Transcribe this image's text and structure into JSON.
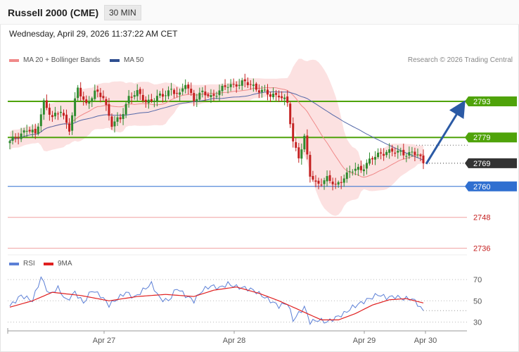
{
  "header": {
    "title": "Russell 2000 (CME)",
    "interval": "30 MIN"
  },
  "datetime": "Wednesday, April 29, 2026 11:37:22 AM CET",
  "legend": {
    "bollinger_label": "MA 20 + Bollinger Bands",
    "ma50_label": "MA 50",
    "rsi_label": "RSI",
    "rsi_ma_label": "9MA",
    "credit": "Research © 2026 Trading Central"
  },
  "colors": {
    "bull": "#2e8b2e",
    "bear": "#c42020",
    "band": "#fbd7d7",
    "ma20": "#f08a8a",
    "ma50": "#5468a8",
    "resistance": "#4fa30a",
    "support": "#2f6fd0",
    "lower_support": "#f0a0a0",
    "last": "#333333",
    "rsi": "#5b7fd6",
    "rsi_ma": "#e02020"
  },
  "chart_data": [
    {
      "type": "candlestick",
      "title": "Russell 2000 (CME)",
      "interval": "30 MIN",
      "ylim": [
        2734,
        2805
      ],
      "x_ticks": [
        "Apr 27",
        "Apr 28",
        "Apr 29",
        "Apr 30"
      ],
      "keypoints": [
        {
          "i": 0,
          "c": 2777
        },
        {
          "i": 3,
          "c": 2780
        },
        {
          "i": 6,
          "c": 2782
        },
        {
          "i": 9,
          "c": 2780
        },
        {
          "i": 12,
          "c": 2793
        },
        {
          "i": 15,
          "c": 2786
        },
        {
          "i": 18,
          "c": 2790
        },
        {
          "i": 21,
          "c": 2782
        },
        {
          "i": 24,
          "c": 2798
        },
        {
          "i": 27,
          "c": 2792
        },
        {
          "i": 30,
          "c": 2796
        },
        {
          "i": 33,
          "c": 2795
        },
        {
          "i": 36,
          "c": 2784
        },
        {
          "i": 39,
          "c": 2786
        },
        {
          "i": 42,
          "c": 2795
        },
        {
          "i": 45,
          "c": 2796
        },
        {
          "i": 48,
          "c": 2793
        },
        {
          "i": 51,
          "c": 2794
        },
        {
          "i": 54,
          "c": 2795
        },
        {
          "i": 57,
          "c": 2798
        },
        {
          "i": 60,
          "c": 2795
        },
        {
          "i": 62,
          "c": 2800
        },
        {
          "i": 65,
          "c": 2794
        },
        {
          "i": 68,
          "c": 2796
        },
        {
          "i": 71,
          "c": 2795
        },
        {
          "i": 74,
          "c": 2797
        },
        {
          "i": 77,
          "c": 2799
        },
        {
          "i": 80,
          "c": 2800
        },
        {
          "i": 83,
          "c": 2800
        },
        {
          "i": 86,
          "c": 2799
        },
        {
          "i": 89,
          "c": 2797
        },
        {
          "i": 92,
          "c": 2795
        },
        {
          "i": 95,
          "c": 2796
        },
        {
          "i": 98,
          "c": 2792
        },
        {
          "i": 100,
          "c": 2777
        },
        {
          "i": 102,
          "c": 2772
        },
        {
          "i": 104,
          "c": 2779
        },
        {
          "i": 106,
          "c": 2764
        },
        {
          "i": 108,
          "c": 2761
        },
        {
          "i": 110,
          "c": 2762
        },
        {
          "i": 112,
          "c": 2763
        },
        {
          "i": 115,
          "c": 2760
        },
        {
          "i": 118,
          "c": 2764
        },
        {
          "i": 121,
          "c": 2766
        },
        {
          "i": 124,
          "c": 2767
        },
        {
          "i": 127,
          "c": 2770
        },
        {
          "i": 130,
          "c": 2772
        },
        {
          "i": 133,
          "c": 2774
        },
        {
          "i": 136,
          "c": 2773
        },
        {
          "i": 139,
          "c": 2773
        },
        {
          "i": 142,
          "c": 2773
        },
        {
          "i": 144,
          "c": 2772
        },
        {
          "i": 146,
          "c": 2769
        }
      ],
      "levels": [
        {
          "value": 2793,
          "role": "resistance"
        },
        {
          "value": 2779,
          "role": "resistance"
        },
        {
          "value": 2769,
          "role": "last"
        },
        {
          "value": 2760,
          "role": "support"
        },
        {
          "value": 2748,
          "role": "support"
        },
        {
          "value": 2736,
          "role": "support"
        }
      ],
      "forecast": {
        "from": 2769,
        "to": 2793
      }
    },
    {
      "type": "line",
      "name": "RSI",
      "ylim": [
        25,
        78
      ],
      "yticks": [
        70,
        50,
        30
      ],
      "series": [
        {
          "name": "RSI",
          "keypoints": [
            {
              "i": 0,
              "v": 45
            },
            {
              "i": 4,
              "v": 55
            },
            {
              "i": 8,
              "v": 50
            },
            {
              "i": 11,
              "v": 72
            },
            {
              "i": 14,
              "v": 56
            },
            {
              "i": 17,
              "v": 62
            },
            {
              "i": 20,
              "v": 50
            },
            {
              "i": 23,
              "v": 58
            },
            {
              "i": 26,
              "v": 48
            },
            {
              "i": 29,
              "v": 60
            },
            {
              "i": 32,
              "v": 55
            },
            {
              "i": 35,
              "v": 46
            },
            {
              "i": 38,
              "v": 52
            },
            {
              "i": 41,
              "v": 58
            },
            {
              "i": 44,
              "v": 53
            },
            {
              "i": 47,
              "v": 60
            },
            {
              "i": 50,
              "v": 66
            },
            {
              "i": 53,
              "v": 52
            },
            {
              "i": 56,
              "v": 50
            },
            {
              "i": 59,
              "v": 62
            },
            {
              "i": 62,
              "v": 55
            },
            {
              "i": 65,
              "v": 50
            },
            {
              "i": 68,
              "v": 60
            },
            {
              "i": 71,
              "v": 64
            },
            {
              "i": 74,
              "v": 62
            },
            {
              "i": 77,
              "v": 66
            },
            {
              "i": 80,
              "v": 63
            },
            {
              "i": 83,
              "v": 62
            },
            {
              "i": 86,
              "v": 60
            },
            {
              "i": 89,
              "v": 55
            },
            {
              "i": 92,
              "v": 50
            },
            {
              "i": 95,
              "v": 45
            },
            {
              "i": 98,
              "v": 48
            },
            {
              "i": 100,
              "v": 32
            },
            {
              "i": 102,
              "v": 38
            },
            {
              "i": 104,
              "v": 44
            },
            {
              "i": 106,
              "v": 30
            },
            {
              "i": 109,
              "v": 32
            },
            {
              "i": 112,
              "v": 30
            },
            {
              "i": 115,
              "v": 34
            },
            {
              "i": 118,
              "v": 38
            },
            {
              "i": 121,
              "v": 44
            },
            {
              "i": 124,
              "v": 48
            },
            {
              "i": 127,
              "v": 52
            },
            {
              "i": 130,
              "v": 56
            },
            {
              "i": 133,
              "v": 53
            },
            {
              "i": 136,
              "v": 54
            },
            {
              "i": 139,
              "v": 52
            },
            {
              "i": 142,
              "v": 52
            },
            {
              "i": 144,
              "v": 47
            },
            {
              "i": 146,
              "v": 40
            }
          ]
        },
        {
          "name": "9MA",
          "keypoints": [
            {
              "i": 0,
              "v": 44
            },
            {
              "i": 8,
              "v": 50
            },
            {
              "i": 15,
              "v": 58
            },
            {
              "i": 25,
              "v": 55
            },
            {
              "i": 35,
              "v": 50
            },
            {
              "i": 45,
              "v": 54
            },
            {
              "i": 55,
              "v": 56
            },
            {
              "i": 65,
              "v": 54
            },
            {
              "i": 72,
              "v": 60
            },
            {
              "i": 80,
              "v": 63
            },
            {
              "i": 88,
              "v": 57
            },
            {
              "i": 95,
              "v": 50
            },
            {
              "i": 100,
              "v": 44
            },
            {
              "i": 105,
              "v": 38
            },
            {
              "i": 110,
              "v": 32
            },
            {
              "i": 116,
              "v": 32
            },
            {
              "i": 122,
              "v": 38
            },
            {
              "i": 128,
              "v": 46
            },
            {
              "i": 134,
              "v": 51
            },
            {
              "i": 140,
              "v": 52
            },
            {
              "i": 146,
              "v": 48
            }
          ]
        }
      ]
    }
  ]
}
